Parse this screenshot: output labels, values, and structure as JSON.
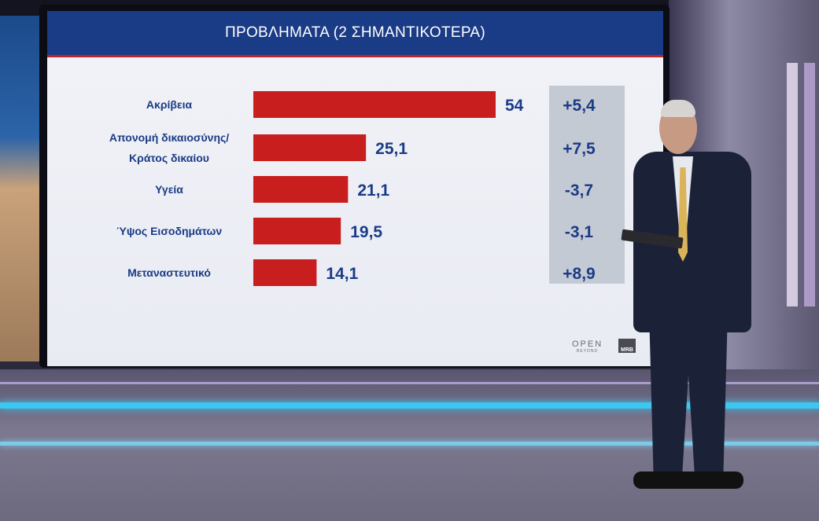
{
  "title": "ΠΡΟΒΛΗΜΑΤΑ (2 ΣΗΜΑΝΤΙΚΟΤΕΡΑ)",
  "logos": {
    "channel": "OPEN",
    "channel_sub": "BEYOND",
    "pollster": "MRB"
  },
  "colors": {
    "header": "#1a3b86",
    "bar": "#c81e1e",
    "accent_line": "#c0242a",
    "change_column": "#c4cad3",
    "text": "#1a3b86"
  },
  "chart_data": {
    "type": "bar",
    "orientation": "horizontal",
    "title": "ΠΡΟΒΛΗΜΑΤΑ (2 ΣΗΜΑΝΤΙΚΟΤΕΡΑ)",
    "categories": [
      [
        "Ακρίβεια"
      ],
      [
        "Απονομή δικαιοσύνης/",
        "Κράτος δικαίου"
      ],
      [
        "Υγεία"
      ],
      [
        "Ύψος Εισοδημάτων"
      ],
      [
        "Μεταναστευτικό"
      ]
    ],
    "values": [
      54,
      25.1,
      21.1,
      19.5,
      14.1
    ],
    "value_labels": [
      "54",
      "25,1",
      "21,1",
      "19,5",
      "14,1"
    ],
    "changes": [
      "+5,4",
      "+7,5",
      "-3,7",
      "-3,1",
      "+8,9"
    ],
    "xlim": [
      0,
      54
    ]
  }
}
